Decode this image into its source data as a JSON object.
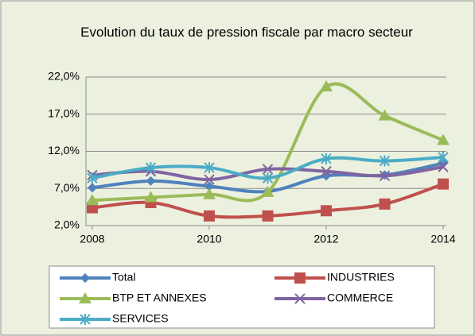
{
  "chart_data": {
    "type": "line",
    "title": "Evolution du taux de pression fiscale par macro secteur",
    "x": [
      2008,
      2009,
      2010,
      2011,
      2012,
      2013,
      2014
    ],
    "xlim": [
      2008,
      2014
    ],
    "xticks": [
      2008,
      2010,
      2012,
      2014
    ],
    "ylim": [
      2,
      22
    ],
    "yticks": [
      {
        "value": 2,
        "label": "2,0%"
      },
      {
        "value": 7,
        "label": "7,0%"
      },
      {
        "value": 12,
        "label": "12,0%"
      },
      {
        "value": 17,
        "label": "17,0%"
      },
      {
        "value": 22,
        "label": "22,0%"
      }
    ],
    "grid": true,
    "legend": "bottom",
    "series": [
      {
        "name": "Total",
        "color": "#4f81bd",
        "marker": "diamond",
        "values": [
          7.1,
          8.0,
          7.3,
          6.6,
          8.7,
          8.8,
          10.4
        ]
      },
      {
        "name": "INDUSTRIES",
        "color": "#c0504d",
        "marker": "square",
        "values": [
          4.4,
          5.1,
          3.3,
          3.3,
          4.0,
          4.9,
          7.6
        ]
      },
      {
        "name": "BTP ET ANNEXES",
        "color": "#9bbb59",
        "marker": "triangle",
        "values": [
          5.4,
          5.8,
          6.2,
          6.5,
          20.7,
          16.8,
          13.5
        ]
      },
      {
        "name": "COMMERCE",
        "color": "#8064a2",
        "marker": "x",
        "values": [
          8.8,
          9.3,
          8.2,
          9.6,
          9.3,
          8.7,
          9.9
        ]
      },
      {
        "name": "SERVICES",
        "color": "#4bacc6",
        "marker": "star",
        "values": [
          8.4,
          9.8,
          9.8,
          8.4,
          11.0,
          10.7,
          11.2
        ]
      }
    ]
  }
}
